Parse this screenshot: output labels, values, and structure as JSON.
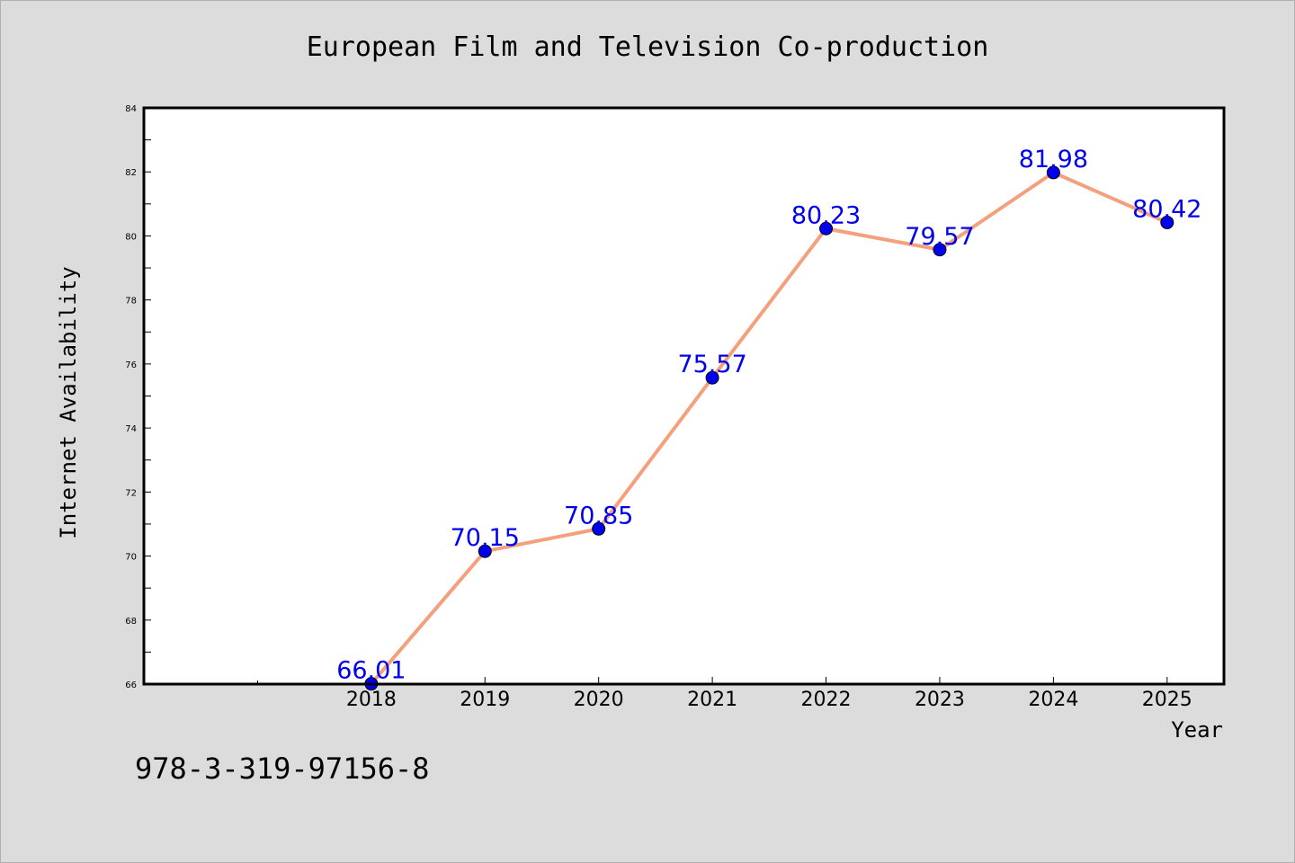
{
  "chart_data": {
    "type": "line",
    "title": "European Film and Television Co-production",
    "xlabel": "Year",
    "ylabel": "Internet Availability",
    "x": [
      2018,
      2019,
      2020,
      2021,
      2022,
      2023,
      2024,
      2025
    ],
    "x_tick_labels": [
      "2018",
      "2019",
      "2020",
      "2021",
      "2022",
      "2023",
      "2024",
      "2025"
    ],
    "series": [
      {
        "values": [
          66.01,
          70.15,
          70.85,
          75.57,
          80.23,
          79.57,
          81.98,
          80.42
        ],
        "data_labels": [
          "66.01",
          "70.15",
          "70.85",
          "75.57",
          "80.23",
          "79.57",
          "81.98",
          "80.42"
        ],
        "line_color": "#f4a07c",
        "marker_color": "#0000ee"
      }
    ],
    "xlim": [
      2016,
      2025.5
    ],
    "ylim": [
      66,
      84
    ],
    "y_ticks": [
      66,
      68,
      70,
      72,
      74,
      76,
      78,
      80,
      82,
      84
    ],
    "y_tick_labels": [
      "66",
      "68",
      "70",
      "72",
      "74",
      "76",
      "78",
      "80",
      "82",
      "84"
    ],
    "label_color": "#0000ee",
    "grid": false
  },
  "footer": {
    "isbn": "978-3-319-97156-8"
  }
}
